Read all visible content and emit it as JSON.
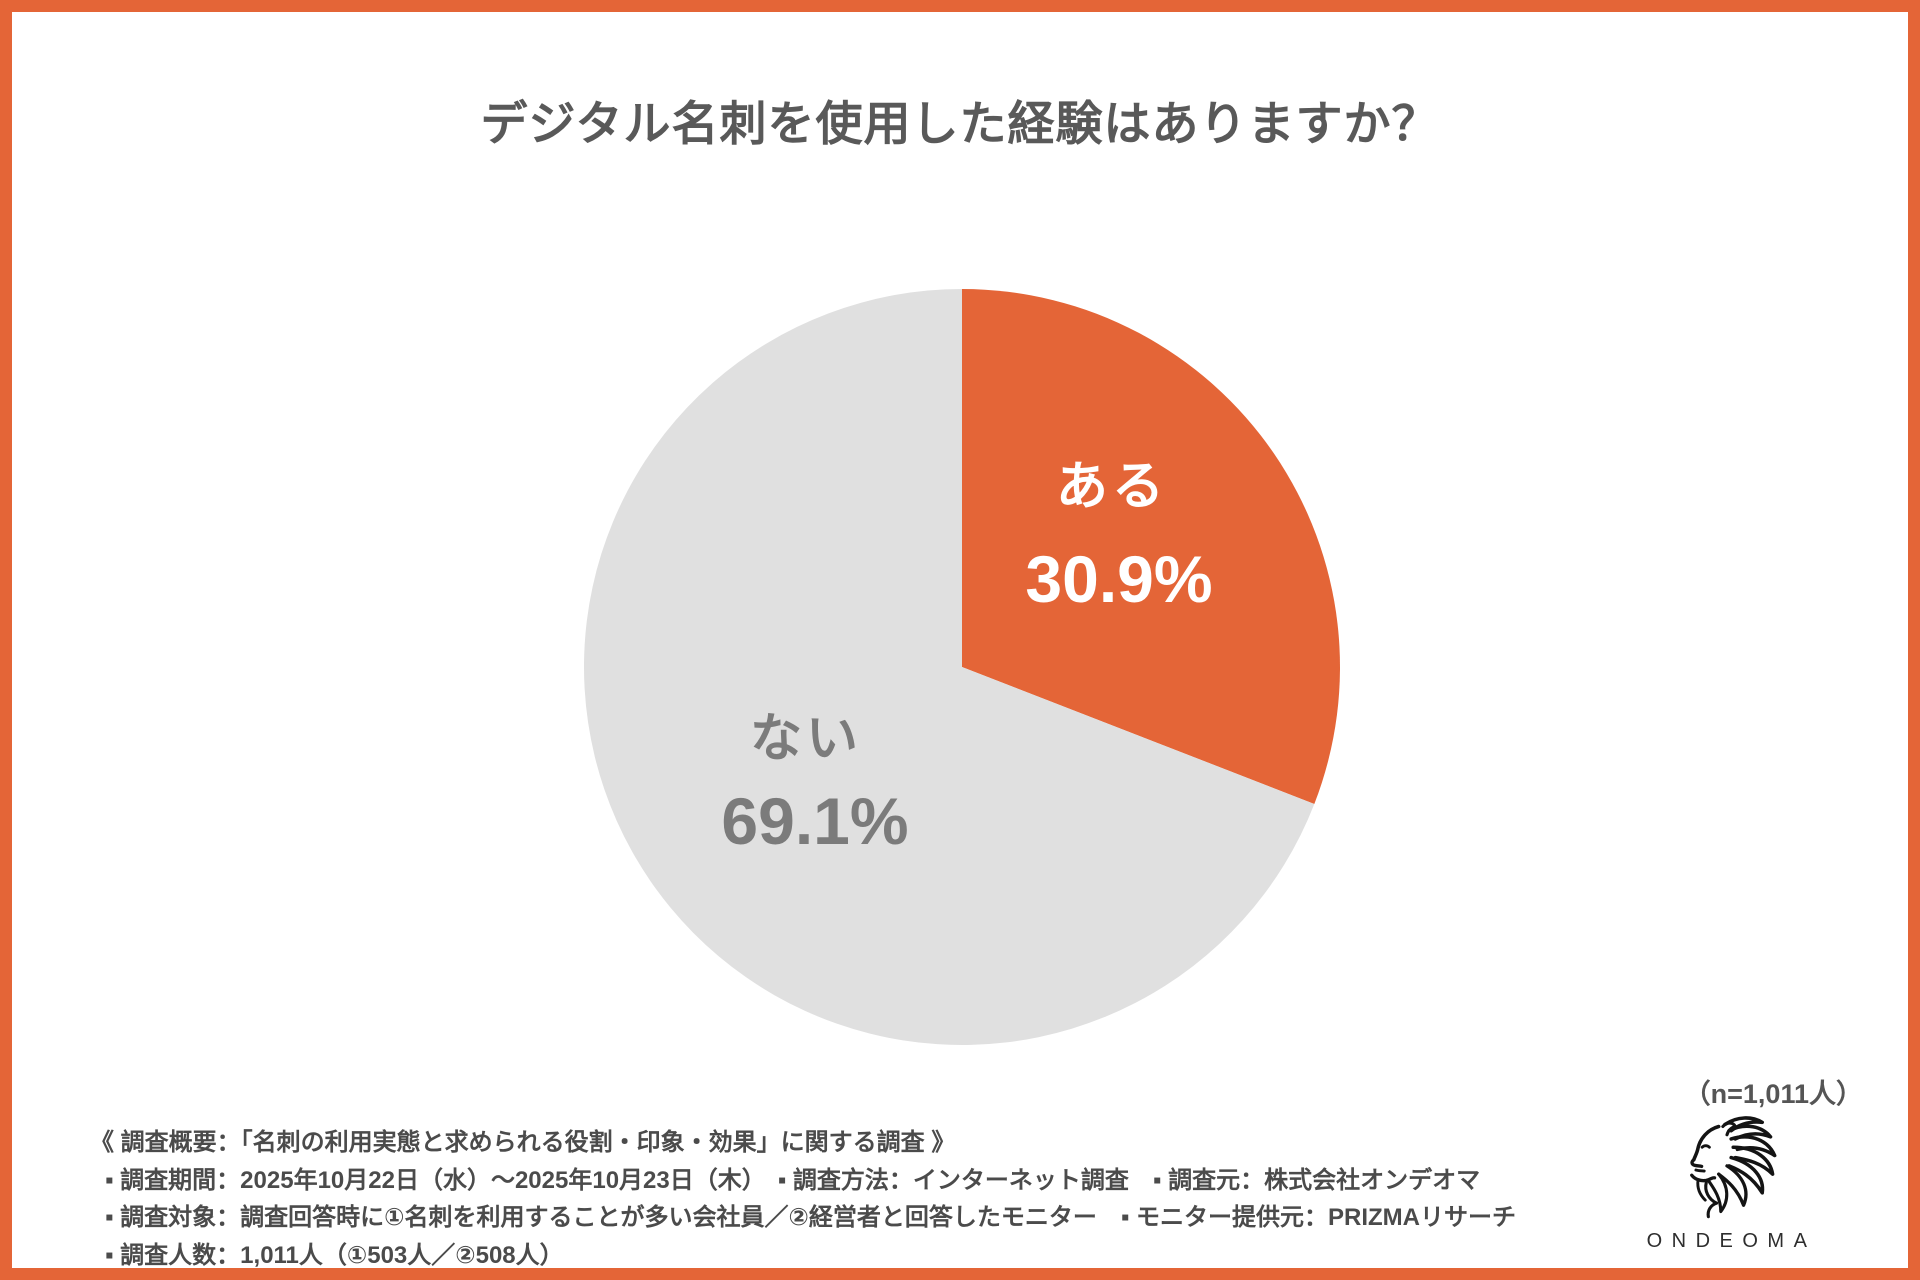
{
  "theme": {
    "accent_orange": "#E46537",
    "slice_gray": "#E0E0E0",
    "title_color": "#595959",
    "note_color": "#4B4B4B"
  },
  "header": {
    "title": "デジタル名刺を使用した経験はありますか？"
  },
  "chart_data": {
    "type": "pie",
    "title": "デジタル名刺を使用した経験はありますか？",
    "categories": [
      "ある",
      "ない"
    ],
    "values": [
      30.9,
      69.1
    ],
    "value_labels": [
      "30.9%",
      "69.1%"
    ],
    "unit": "%",
    "colors": [
      "#E46537",
      "#E0E0E0"
    ],
    "label_colors": [
      "#FFFFFF",
      "#7B7B7B"
    ],
    "start_angle_deg": 0,
    "direction": "clockwise",
    "legend": "none (labels inside slices)",
    "sample_note": "（n=1,011人）"
  },
  "footnote": {
    "lines": [
      "《 調査概要：「名刺の利用実態と求められる役割・印象・効果」に関する調査 》",
      "▪ 調査期間：2025年10月22日（水）～2025年10月23日（木）　▪ 調査方法：インターネット調査　▪ 調査元：株式会社オンデオマ",
      "▪ 調査対象：調査回答時に①名刺を利用することが多い会社員／②経営者と回答したモニター　▪ モニター提供元：PRIZMAリサーチ",
      "▪ 調査人数：1,011人（①503人／②508人）"
    ]
  },
  "branding": {
    "logo_text": "ONDEOMA",
    "logo_icon": "lion-line-art"
  }
}
